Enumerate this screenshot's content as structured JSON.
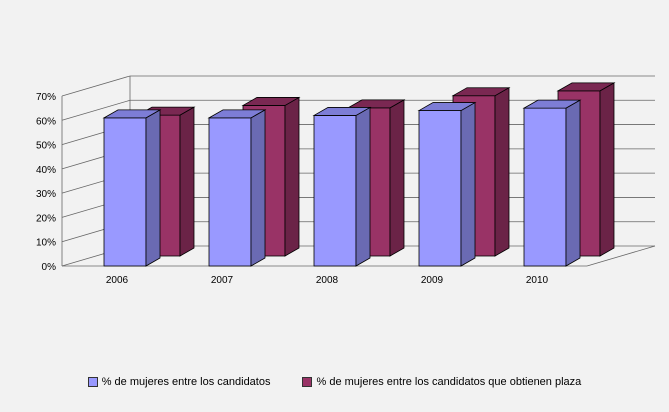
{
  "chart_data": {
    "type": "bar",
    "style": "3d-clustered-column",
    "categories": [
      "2006",
      "2007",
      "2008",
      "2009",
      "2010"
    ],
    "series": [
      {
        "name": "% de mujeres entre los candidatos",
        "values": [
          61,
          61,
          62,
          64,
          65
        ],
        "color": "#9999ff",
        "side_color": "#6a6ab3",
        "top_color": "#7d7dd6"
      },
      {
        "name": "% de mujeres entre los candidatos que obtienen plaza",
        "values": [
          58,
          62,
          61,
          66,
          68
        ],
        "color": "#993366",
        "side_color": "#6b2347",
        "top_color": "#7a2852"
      }
    ],
    "y_ticks": [
      "0%",
      "10%",
      "20%",
      "30%",
      "40%",
      "50%",
      "60%",
      "70%"
    ],
    "ylim": [
      0,
      70
    ],
    "grid": true,
    "legend_position": "bottom"
  }
}
